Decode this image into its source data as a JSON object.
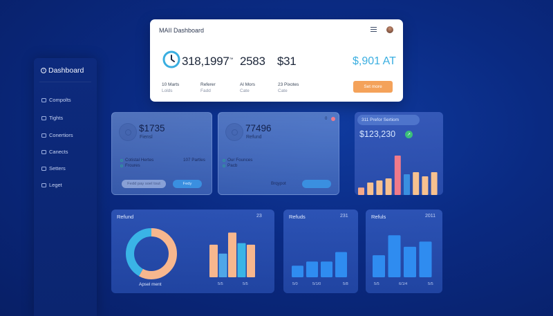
{
  "sidebar": {
    "title": "Dashboard",
    "items": [
      {
        "label": "Compolts",
        "icon": "folder-icon"
      },
      {
        "label": "Tights",
        "icon": "folder-icon"
      },
      {
        "label": "Conertiors",
        "icon": "folder-icon"
      },
      {
        "label": "Canects",
        "icon": "folder-icon"
      },
      {
        "label": "Setters",
        "icon": "settings-icon"
      },
      {
        "label": "Leget",
        "icon": "logout-icon"
      }
    ]
  },
  "main_card": {
    "title": "MAII Dashboard",
    "stats": [
      {
        "value": "318,1997",
        "suffix": "™",
        "label": "10 Marts",
        "sublabel": "Lolds"
      },
      {
        "value": "2583",
        "label": "Referer",
        "sublabel": "Fadd"
      },
      {
        "value": "$31",
        "label": "Al Mors",
        "sublabel": "Cate"
      }
    ],
    "extra": {
      "label": "23 Pixotes",
      "sublabel": "Cate"
    },
    "accent_value": "$,901 AT",
    "button_label": "Set more",
    "accent_color": "#3aaee0",
    "button_color": "#f4a25a"
  },
  "card1": {
    "value": "$1735",
    "label": "Fiensl",
    "rows": [
      {
        "left": "Cotistal Hertes",
        "right": "107 Partles"
      },
      {
        "left": "Froures",
        "right": ""
      }
    ],
    "pill_light": "Fedd pay soel tout",
    "pill_blue": "Fedy"
  },
  "card2": {
    "value": "77496",
    "label": "Refund",
    "corner_value": "0",
    "rows": [
      {
        "left": "Our Founces"
      },
      {
        "left": "Pacb"
      }
    ],
    "footer_text": "Brqypot",
    "pill_blue": ""
  },
  "card3": {
    "title": "311 Prefor Sertiom",
    "value": "$123,230",
    "badge": "↗",
    "chart_data": {
      "type": "bar",
      "values": [
        18,
        30,
        35,
        40,
        95,
        50,
        55,
        45,
        55
      ],
      "colors": [
        "#f4a98a",
        "#f7c18f",
        "#f7c18f",
        "#f7c18f",
        "#f07a8a",
        "#3a8fe0",
        "#f7c18f",
        "#f7c18f",
        "#f7c18f"
      ],
      "ylim": [
        0,
        100
      ]
    }
  },
  "bottom1": {
    "title": "Refund",
    "number": "23",
    "donut_label": "Apsel ment",
    "donut": {
      "type": "pie",
      "values": [
        58,
        42
      ],
      "colors": [
        "#f7b78e",
        "#3ab4e6"
      ]
    },
    "chart_data": {
      "type": "bar",
      "values": [
        62,
        45,
        85,
        65,
        62
      ],
      "colors": [
        "#f7b78e",
        "#4fa6e8",
        "#f7b78e",
        "#3ab4e6",
        "#f7b78e"
      ],
      "ylim": [
        0,
        100
      ]
    },
    "ticks": [
      "5/5",
      "5/5"
    ]
  },
  "bottom2": {
    "title": "Refuds",
    "number": "231",
    "chart_data": {
      "type": "bar",
      "values": [
        22,
        30,
        30,
        48
      ],
      "colors": [
        "#2f8cf0",
        "#2f8cf0",
        "#2f8cf0",
        "#2f8cf0"
      ],
      "ylim": [
        0,
        100
      ]
    },
    "ticks": [
      "5/0",
      "5/1/0",
      "5/8"
    ]
  },
  "bottom3": {
    "title": "Refuls",
    "number": "2011",
    "chart_data": {
      "type": "bar",
      "values": [
        42,
        80,
        58,
        68
      ],
      "colors": [
        "#2f8cf0",
        "#2f8cf0",
        "#2f8cf0",
        "#2f8cf0"
      ],
      "ylim": [
        0,
        100
      ]
    },
    "ticks": [
      "5/5",
      "6/1/4",
      "5/5"
    ]
  }
}
